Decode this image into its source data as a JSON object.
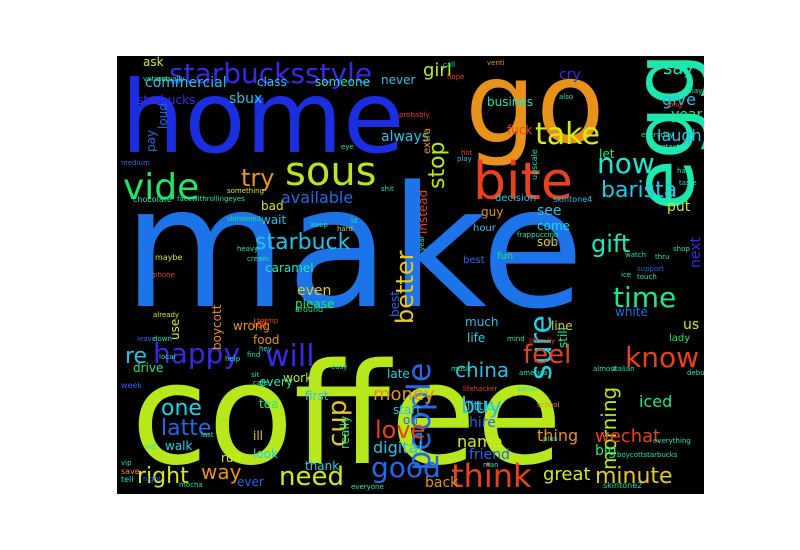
{
  "colors": {
    "background": "#000000",
    "page": "#ffffff"
  },
  "words": [
    {
      "text": "make",
      "color": "#1c74e8"
    },
    {
      "text": "coffee",
      "color": "#b7e81c"
    },
    {
      "text": "home",
      "color": "#1a2ee0"
    },
    {
      "text": "go",
      "color": "#e8921c"
    },
    {
      "text": "egg",
      "color": "#1ce8b0"
    },
    {
      "text": "bite",
      "color": "#e8421c"
    },
    {
      "text": "sous",
      "color": "#b7e81c"
    },
    {
      "text": "vide",
      "color": "#1ce866"
    },
    {
      "text": "starbucksstyle",
      "color": "#3a28e8"
    },
    {
      "text": "take",
      "color": "#d6e81c"
    },
    {
      "text": "now",
      "color": "#1ce8d0"
    },
    {
      "text": "barista",
      "color": "#20c8e8"
    },
    {
      "text": "time",
      "color": "#1ce888"
    },
    {
      "text": "gift",
      "color": "#1ce8c0"
    },
    {
      "text": "sure",
      "color": "#1cd4e8"
    },
    {
      "text": "better",
      "color": "#e8c81c"
    },
    {
      "text": "people",
      "color": "#2468e8"
    },
    {
      "text": "starbuck",
      "color": "#28c0e8"
    },
    {
      "text": "stop",
      "color": "#b7e81c"
    },
    {
      "text": "girl",
      "color": "#c8e81c"
    },
    {
      "text": "try",
      "color": "#e8921c"
    },
    {
      "text": "available",
      "color": "#2468e8"
    },
    {
      "text": "happy",
      "color": "#3a28e8"
    },
    {
      "text": "will",
      "color": "#3a28e8"
    },
    {
      "text": "re",
      "color": "#28c0e8"
    },
    {
      "text": "feel",
      "color": "#e8421c"
    },
    {
      "text": "know",
      "color": "#e8421c"
    },
    {
      "text": "one",
      "color": "#1cd4e8"
    },
    {
      "text": "latte",
      "color": "#2468e8"
    },
    {
      "text": "right",
      "color": "#d6e81c"
    },
    {
      "text": "way",
      "color": "#e8921c"
    },
    {
      "text": "need",
      "color": "#d6e81c"
    },
    {
      "text": "cup",
      "color": "#e8c81c"
    },
    {
      "text": "love",
      "color": "#e8421c"
    },
    {
      "text": "good",
      "color": "#2468e8"
    },
    {
      "text": "think",
      "color": "#e8421c"
    },
    {
      "text": "buy",
      "color": "#28c0e8"
    },
    {
      "text": "china",
      "color": "#28c0e8"
    },
    {
      "text": "money",
      "color": "#e8921c"
    },
    {
      "text": "morning",
      "color": "#b7e81c"
    },
    {
      "text": "minute",
      "color": "#e8c81c"
    },
    {
      "text": "wechat",
      "color": "#e8421c"
    },
    {
      "text": "iced",
      "color": "#1ce888"
    },
    {
      "text": "say",
      "color": "#1ce8b0"
    },
    {
      "text": "give",
      "color": "#28c0e8"
    },
    {
      "text": "year",
      "color": "#1ce888"
    },
    {
      "text": "laugh",
      "color": "#28c0e8"
    },
    {
      "text": "put",
      "color": "#d6e81c"
    },
    {
      "text": "next",
      "color": "#3a28e8"
    },
    {
      "text": "us",
      "color": "#d6e81c"
    },
    {
      "text": "lady",
      "color": "#1ce866"
    },
    {
      "text": "name",
      "color": "#d6e81c"
    },
    {
      "text": "friend",
      "color": "#2468e8"
    },
    {
      "text": "hire",
      "color": "#2468e8"
    },
    {
      "text": "little",
      "color": "#1cd4e8"
    },
    {
      "text": "thing",
      "color": "#e8921c"
    },
    {
      "text": "digital",
      "color": "#28c0e8"
    },
    {
      "text": "great",
      "color": "#d6e81c"
    },
    {
      "text": "big",
      "color": "#1ce888"
    },
    {
      "text": "back",
      "color": "#e8921c"
    },
    {
      "text": "commercial",
      "color": "#28c0e8"
    },
    {
      "text": "starbucks",
      "color": "#3a28e8"
    },
    {
      "text": "sbux",
      "color": "#28c0e8"
    },
    {
      "text": "class",
      "color": "#28c0e8"
    },
    {
      "text": "someone",
      "color": "#1ce8b0"
    },
    {
      "text": "never",
      "color": "#28c0e8"
    },
    {
      "text": "always",
      "color": "#28c0e8"
    },
    {
      "text": "loud",
      "color": "#2468e8"
    },
    {
      "text": "pay",
      "color": "#2468e8"
    },
    {
      "text": "ask",
      "color": "#d6e81c"
    },
    {
      "text": "cry",
      "color": "#3a28e8"
    },
    {
      "text": "busines",
      "color": "#1ce8b0"
    },
    {
      "text": "let",
      "color": "#1ce888"
    },
    {
      "text": "fuck",
      "color": "#e8421c"
    },
    {
      "text": "see",
      "color": "#28c0e8"
    },
    {
      "text": "come",
      "color": "#1cd4e8"
    },
    {
      "text": "sob",
      "color": "#e8c81c"
    },
    {
      "text": "guy",
      "color": "#e8921c"
    },
    {
      "text": "decision",
      "color": "#28c0e8"
    },
    {
      "text": "instead",
      "color": "#e8421c"
    },
    {
      "text": "bad",
      "color": "#d6e81c"
    },
    {
      "text": "wait",
      "color": "#28c0e8"
    },
    {
      "text": "caramel",
      "color": "#1ce8b0"
    },
    {
      "text": "joy",
      "color": "#2468e8"
    },
    {
      "text": "boycott",
      "color": "#e8921c"
    },
    {
      "text": "even",
      "color": "#e8c81c"
    },
    {
      "text": "please",
      "color": "#1ce866"
    },
    {
      "text": "best",
      "color": "#2468e8"
    },
    {
      "text": "much",
      "color": "#28c0e8"
    },
    {
      "text": "life",
      "color": "#1cd4e8"
    },
    {
      "text": "line",
      "color": "#e8c81c"
    },
    {
      "text": "still",
      "color": "#1ce888"
    },
    {
      "text": "white",
      "color": "#2468e8"
    },
    {
      "text": "use",
      "color": "#d6e81c"
    },
    {
      "text": "lol",
      "color": "#e8421c"
    },
    {
      "text": "food",
      "color": "#e8921c"
    },
    {
      "text": "drive",
      "color": "#1ce888"
    },
    {
      "text": "work",
      "color": "#b7e81c"
    },
    {
      "text": "late",
      "color": "#1cd4e8"
    },
    {
      "text": "first",
      "color": "#28c0e8"
    },
    {
      "text": "every",
      "color": "#1ce8b0"
    },
    {
      "text": "tea",
      "color": "#1ce888"
    },
    {
      "text": "start",
      "color": "#28c0e8"
    },
    {
      "text": "oh",
      "color": "#2468e8"
    },
    {
      "text": "really",
      "color": "#1ce888"
    },
    {
      "text": "walk",
      "color": "#1cd4e8"
    },
    {
      "text": "ill",
      "color": "#e8c81c"
    },
    {
      "text": "run",
      "color": "#d6e81c"
    },
    {
      "text": "look",
      "color": "#1cd4e8"
    },
    {
      "text": "ever",
      "color": "#2468e8"
    },
    {
      "text": "thank",
      "color": "#1cd4e8"
    },
    {
      "text": "wrong",
      "color": "#e8921c"
    },
    {
      "text": "skintone2",
      "color": "#1ce8b0"
    },
    {
      "text": "mocha",
      "color": "#1ce888"
    },
    {
      "text": "chocolate",
      "color": "#1ce8b0"
    },
    {
      "text": "facewithrollingeyes",
      "color": "#1ce8b0"
    },
    {
      "text": "eye",
      "color": "#1ce8b0"
    },
    {
      "text": "probably",
      "color": "#e8421c"
    },
    {
      "text": "something",
      "color": "#d6e81c"
    },
    {
      "text": "shit",
      "color": "#1ce8b0"
    },
    {
      "text": "skintone3",
      "color": "#1ce888"
    },
    {
      "text": "hard",
      "color": "#e8c81c"
    },
    {
      "text": "hour",
      "color": "#28c0e8"
    },
    {
      "text": "fun",
      "color": "#1ce866"
    },
    {
      "text": "best",
      "color": "#2468e8"
    },
    {
      "text": "skintone4",
      "color": "#28c0e8"
    },
    {
      "text": "upscale",
      "color": "#1ce8b0"
    },
    {
      "text": "hot",
      "color": "#e8421c"
    },
    {
      "text": "play",
      "color": "#28c0e8"
    },
    {
      "text": "extra",
      "color": "#e8921c"
    },
    {
      "text": "medium",
      "color": "#2468e8"
    },
    {
      "text": "maybe",
      "color": "#d6e81c"
    },
    {
      "text": "phone",
      "color": "#e8421c"
    },
    {
      "text": "leave",
      "color": "#2468e8"
    },
    {
      "text": "already",
      "color": "#d6e81c"
    },
    {
      "text": "week",
      "color": "#2468e8"
    },
    {
      "text": "local",
      "color": "#1ce8b0"
    },
    {
      "text": "help",
      "color": "#1ce8b0"
    },
    {
      "text": "trump",
      "color": "#e8421c"
    },
    {
      "text": "around",
      "color": "#1ce8b0"
    },
    {
      "text": "mind",
      "color": "#1ce8b0"
    },
    {
      "text": "america",
      "color": "#1ce8b0"
    },
    {
      "text": "music",
      "color": "#1ce8b0"
    },
    {
      "text": "almost",
      "color": "#1ce8b0"
    },
    {
      "text": "italian",
      "color": "#1ce8b0"
    },
    {
      "text": "literally",
      "color": "#e8421c"
    },
    {
      "text": "sense",
      "color": "#1ce8b0"
    },
    {
      "text": "school",
      "color": "#e8921c"
    },
    {
      "text": "lifehacker",
      "color": "#e8421c"
    },
    {
      "text": "everyone",
      "color": "#1ce8b0"
    },
    {
      "text": "boycottstarbucks",
      "color": "#1ce8b0"
    },
    {
      "text": "everything",
      "color": "#1ce8b0"
    },
    {
      "text": "actually",
      "color": "#1ce8b0"
    },
    {
      "text": "veteran",
      "color": "#1ce8b0"
    },
    {
      "text": "call",
      "color": "#1ce8b0"
    },
    {
      "text": "hope",
      "color": "#e8421c"
    },
    {
      "text": "venti",
      "color": "#e8921c"
    },
    {
      "text": "also",
      "color": "#1ce8b0"
    },
    {
      "text": "long",
      "color": "#e8421c"
    },
    {
      "text": "may",
      "color": "#1ce8b0"
    },
    {
      "text": "everyday",
      "color": "#1ce8b0"
    },
    {
      "text": "contact",
      "color": "#1ce8b0"
    },
    {
      "text": "hate",
      "color": "#1ce8b0"
    },
    {
      "text": "taste",
      "color": "#1ce8b0"
    },
    {
      "text": "debut",
      "color": "#1ce8b0"
    },
    {
      "text": "heavy",
      "color": "#1ce8b0"
    },
    {
      "text": "cream",
      "color": "#1ce8b0"
    },
    {
      "text": "frappuccino",
      "color": "#1ce8b0"
    },
    {
      "text": "keep",
      "color": "#1ce8b0"
    },
    {
      "text": "id",
      "color": "#1ce8b0"
    },
    {
      "text": "real",
      "color": "#2468e8"
    },
    {
      "text": "man",
      "color": "#1ce8b0"
    },
    {
      "text": "last",
      "color": "#1ce8b0"
    },
    {
      "text": "vip",
      "color": "#1ce8b0"
    },
    {
      "text": "old",
      "color": "#1ce8b0"
    },
    {
      "text": "save",
      "color": "#e8921c"
    },
    {
      "text": "tell",
      "color": "#1ce8b0"
    },
    {
      "text": "night",
      "color": "#2468e8"
    },
    {
      "text": "down",
      "color": "#1ce8b0"
    },
    {
      "text": "find",
      "color": "#1ce8b0"
    },
    {
      "text": "sit",
      "color": "#1ce8b0"
    },
    {
      "text": "cafe",
      "color": "#1ce8b0"
    },
    {
      "text": "easy",
      "color": "#1ce8b0"
    },
    {
      "text": "hey",
      "color": "#1ce8b0"
    },
    {
      "text": "ice",
      "color": "#1ce8b0"
    },
    {
      "text": "shop",
      "color": "#1ce8b0"
    },
    {
      "text": "thru",
      "color": "#1ce8b0"
    },
    {
      "text": "support",
      "color": "#2468e8"
    },
    {
      "text": "touch",
      "color": "#1ce8b0"
    },
    {
      "text": "plus",
      "color": "#1ce8b0"
    },
    {
      "text": "year",
      "color": "#1ce8b0"
    },
    {
      "text": "watch",
      "color": "#1ce8b0"
    },
    {
      "text": "wanna",
      "color": "#1ce8b0"
    },
    {
      "text": "ring",
      "color": "#2468e8"
    }
  ]
}
